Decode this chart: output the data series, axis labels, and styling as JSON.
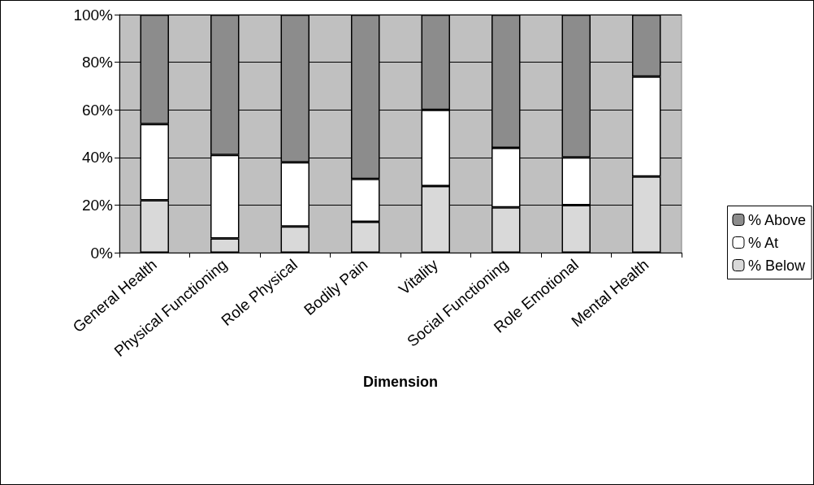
{
  "chart_data": {
    "type": "bar",
    "stacked": true,
    "xlabel": "Dimension",
    "categories": [
      "General Health",
      "Physical Functioning",
      "Role Physical",
      "Bodily Pain",
      "Vitality",
      "Social Functioning",
      "Role Emotional",
      "Mental Health"
    ],
    "series": [
      {
        "name": "% Below",
        "color": "#d9d9d9",
        "values": [
          22,
          6,
          11,
          13,
          28,
          19,
          20,
          32
        ]
      },
      {
        "name": "% At",
        "color": "#ffffff",
        "values": [
          32,
          35,
          27,
          18,
          32,
          25,
          20,
          42
        ]
      },
      {
        "name": "% Above",
        "color": "#8c8c8c",
        "values": [
          46,
          59,
          62,
          69,
          40,
          56,
          60,
          26
        ]
      }
    ],
    "ylim": [
      0,
      100
    ],
    "yticks": [
      {
        "value": 0,
        "label": "0%"
      },
      {
        "value": 20,
        "label": "20%"
      },
      {
        "value": 40,
        "label": "40%"
      },
      {
        "value": 60,
        "label": "60%"
      },
      {
        "value": 80,
        "label": "80%"
      },
      {
        "value": 100,
        "label": "100%"
      }
    ],
    "grid": "y",
    "legend": "right"
  }
}
